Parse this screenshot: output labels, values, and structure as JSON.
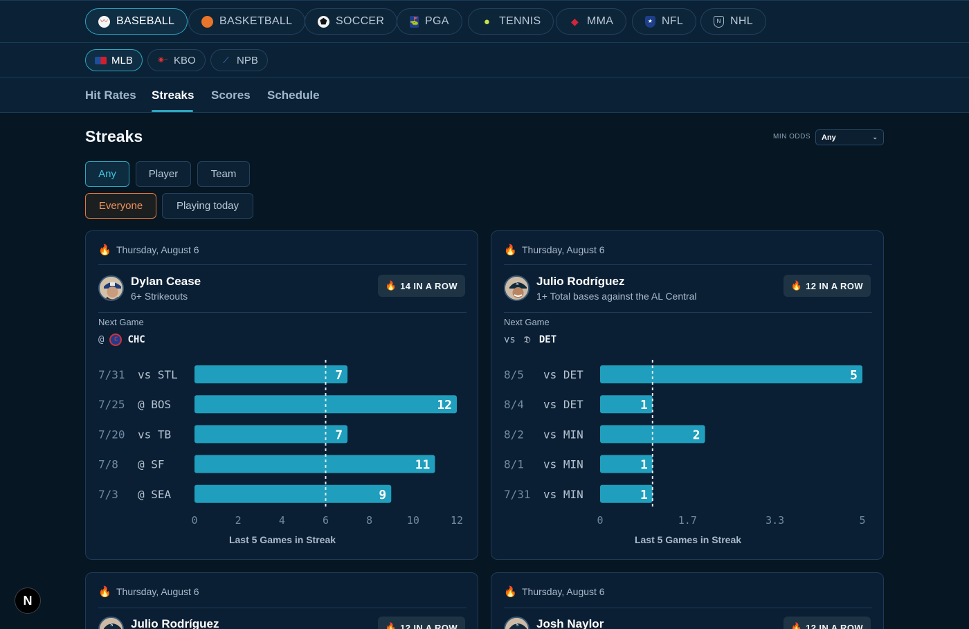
{
  "sports": [
    {
      "label": "BASEBALL",
      "icon": "baseball-icon",
      "active": true
    },
    {
      "label": "BASKETBALL",
      "icon": "basketball-icon"
    },
    {
      "label": "SOCCER",
      "icon": "soccer-ball-icon"
    },
    {
      "label": "PGA",
      "icon": "pga-logo-icon"
    },
    {
      "label": "TENNIS",
      "icon": "tennis-icon"
    },
    {
      "label": "MMA",
      "icon": "mma-glove-icon"
    },
    {
      "label": "NFL",
      "icon": "nfl-logo-icon"
    },
    {
      "label": "NHL",
      "icon": "nhl-logo-icon"
    }
  ],
  "leagues": [
    {
      "label": "MLB",
      "icon": "mlb-logo-icon",
      "active": true
    },
    {
      "label": "KBO",
      "icon": "kbo-logo-icon"
    },
    {
      "label": "NPB",
      "icon": "npb-logo-icon"
    }
  ],
  "tabs": [
    {
      "label": "Hit Rates"
    },
    {
      "label": "Streaks",
      "active": true
    },
    {
      "label": "Scores"
    },
    {
      "label": "Schedule"
    }
  ],
  "page": {
    "title": "Streaks",
    "min_odds_label": "MIN ODDS",
    "min_odds_value": "Any"
  },
  "filters": {
    "type": [
      "Any",
      "Player",
      "Team"
    ],
    "type_selected": "Any",
    "scope": [
      "Everyone",
      "Playing today"
    ],
    "scope_selected": "Everyone"
  },
  "colors": {
    "accent": "#2da7c0",
    "bar": "#1f9fbd",
    "orange": "#e07a3a",
    "background": "#061623",
    "card": "#0b1f34"
  },
  "cards": [
    {
      "date": "Thursday, August 6",
      "player": "Dylan Cease",
      "prop": "6+ Strikeouts",
      "streak": "14 IN A ROW",
      "next_label": "Next Game",
      "next_prefix": "@",
      "next_team": "CHC",
      "chart_caption": "Last 5 Games in Streak",
      "chart_data": {
        "type": "bar",
        "orientation": "horizontal",
        "categories": [
          "7/31 vs STL",
          "7/25 @ BOS",
          "7/20 vs TB",
          "7/8 @ SF",
          "7/3 @ SEA"
        ],
        "dates": [
          "7/31",
          "7/25",
          "7/20",
          "7/8",
          "7/3"
        ],
        "matchups": [
          "vs STL",
          "@ BOS",
          "vs TB",
          "@ SF",
          "@ SEA"
        ],
        "values": [
          7,
          12,
          7,
          11,
          9
        ],
        "xlim": [
          0,
          12
        ],
        "ticks": [
          "0",
          "2",
          "4",
          "6",
          "8",
          "10",
          "12"
        ],
        "threshold": 6,
        "xlabel": "Last 5 Games in Streak"
      }
    },
    {
      "date": "Thursday, August 6",
      "player": "Julio Rodríguez",
      "prop": "1+ Total bases against the AL Central",
      "streak": "12 IN A ROW",
      "next_label": "Next Game",
      "next_prefix": "vs",
      "next_team": "DET",
      "chart_caption": "Last 5 Games in Streak",
      "chart_data": {
        "type": "bar",
        "orientation": "horizontal",
        "categories": [
          "8/5 vs DET",
          "8/4 vs DET",
          "8/2 vs MIN",
          "8/1 vs MIN",
          "7/31 vs MIN"
        ],
        "dates": [
          "8/5",
          "8/4",
          "8/2",
          "8/1",
          "7/31"
        ],
        "matchups": [
          "vs DET",
          "vs DET",
          "vs MIN",
          "vs MIN",
          "vs MIN"
        ],
        "values": [
          5,
          1,
          2,
          1,
          1
        ],
        "xlim": [
          0,
          5
        ],
        "ticks": [
          "0",
          "1.7",
          "3.3",
          "5"
        ],
        "threshold": 1,
        "xlabel": "Last 5 Games in Streak"
      }
    },
    {
      "date": "Thursday, August 6",
      "player": "Julio Rodríguez",
      "streak": "12 IN A ROW"
    },
    {
      "date": "Thursday, August 6",
      "player": "Josh Naylor",
      "streak": "12 IN A ROW"
    }
  ],
  "dev_badge": "N"
}
